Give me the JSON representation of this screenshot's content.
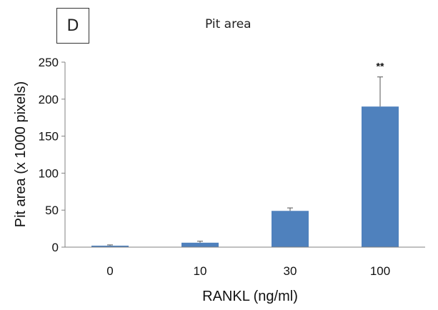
{
  "panel_label": "D",
  "chart_data": {
    "type": "bar",
    "title": "Pit area",
    "xlabel": "RANKL (ng/ml)",
    "ylabel": "Pit area (x 1000 pixels)",
    "categories": [
      "0",
      "10",
      "30",
      "100"
    ],
    "values": [
      2,
      6,
      49,
      190
    ],
    "errors": [
      1,
      2,
      4,
      40
    ],
    "annotations": [
      "",
      "",
      "",
      "**"
    ],
    "ylim": [
      0,
      250
    ],
    "yticks": [
      0,
      50,
      100,
      150,
      200,
      250
    ],
    "grid": false,
    "bar_color": "#4F81BD"
  }
}
